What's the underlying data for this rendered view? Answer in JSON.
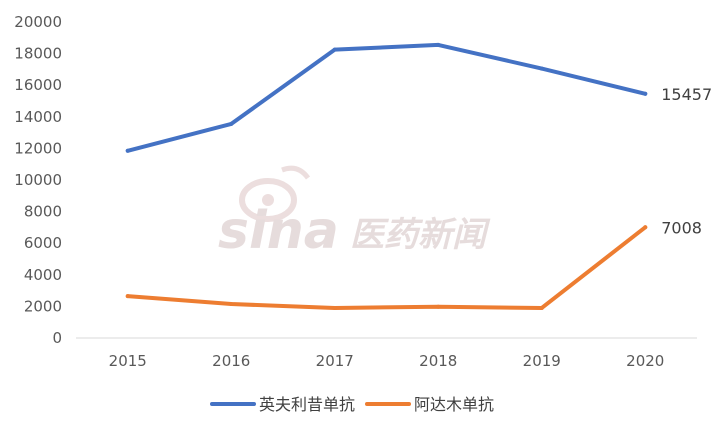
{
  "chart_data": {
    "type": "line",
    "categories": [
      "2015",
      "2016",
      "2017",
      "2018",
      "2019",
      "2020"
    ],
    "series": [
      {
        "name": "英夫利昔单抗",
        "color": "#4472c4",
        "values": [
          11850,
          13550,
          18250,
          18550,
          17050,
          15457
        ],
        "end_label": "15457"
      },
      {
        "name": "阿达木单抗",
        "color": "#ed7d31",
        "values": [
          2650,
          2150,
          1900,
          1980,
          1900,
          7008
        ],
        "end_label": "7008"
      }
    ],
    "ylim": [
      0,
      20000
    ],
    "yticks": [
      0,
      2000,
      4000,
      6000,
      8000,
      10000,
      12000,
      14000,
      16000,
      18000,
      20000
    ],
    "grid": false,
    "legend_position": "bottom-center"
  },
  "watermark": {
    "brand": "sina",
    "tagline": "医药新闻"
  }
}
